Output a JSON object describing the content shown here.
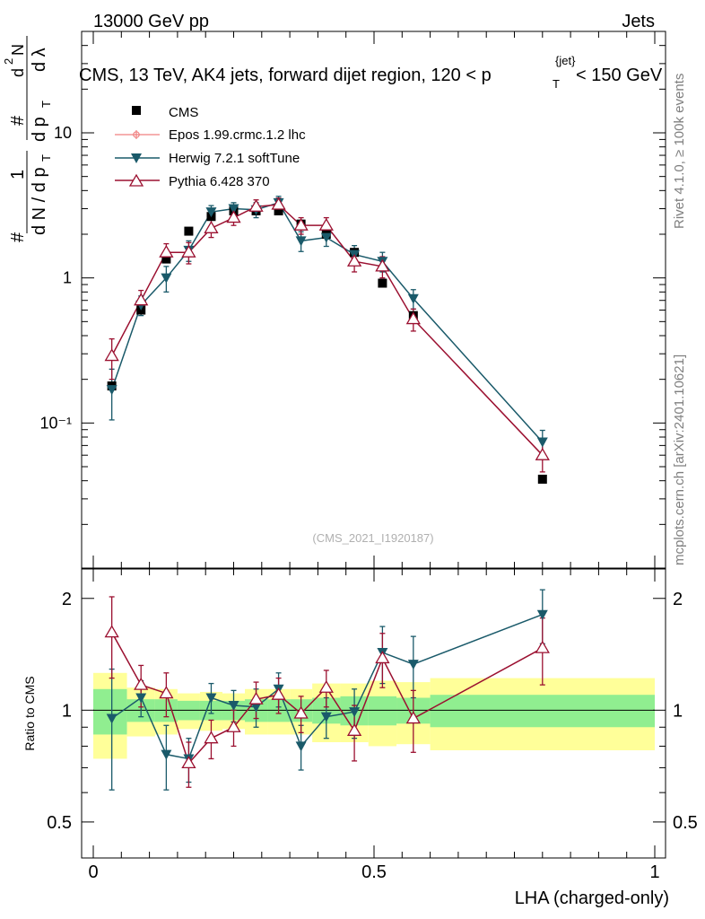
{
  "header": {
    "energy": "13000 GeV pp",
    "category": "Jets"
  },
  "side": {
    "rivet": "Rivet 4.1.0, ≥ 100k events",
    "site": "mcplots.cern.ch [arXiv:2401.10621]"
  },
  "watermark": "(CMS_2021_I1920187)",
  "chart_data": [
    {
      "type": "scatter",
      "panel": "main",
      "title": "CMS, 13 TeV, AK4 jets, forward dijet region, 120 < p_T^{jet} < 150 GeV",
      "xlabel": "LHA (charged-only)",
      "ylabel": "(1 / dN/dp_T) d²N / dp_T dλ",
      "yscale": "log",
      "xlim": [
        0,
        1
      ],
      "ylim": [
        0.01,
        50
      ],
      "yticks": [
        0.1,
        1,
        10
      ],
      "ytick_labels": [
        "10⁻¹",
        "1",
        "10"
      ],
      "x": [
        0.033,
        0.085,
        0.13,
        0.17,
        0.21,
        0.25,
        0.29,
        0.33,
        0.37,
        0.415,
        0.465,
        0.515,
        0.57,
        0.8
      ],
      "series": [
        {
          "name": "CMS",
          "color": "#000000",
          "marker": "square",
          "values": [
            0.18,
            0.6,
            1.35,
            2.1,
            2.65,
            2.9,
            2.9,
            2.9,
            2.35,
            2.0,
            1.5,
            0.92,
            0.55,
            0.041
          ]
        },
        {
          "name": "Epos 1.99.crmc.1.2 lhc",
          "color": "#f08080",
          "marker": "open-circle-cross",
          "values": []
        },
        {
          "name": "Herwig 7.2.1 softTune",
          "color": "#1a5a6a",
          "marker": "down-triangle",
          "values": [
            0.17,
            0.65,
            1.0,
            1.55,
            2.85,
            3.0,
            2.95,
            3.3,
            1.8,
            1.9,
            1.45,
            1.3,
            0.72,
            0.074
          ],
          "errors": [
            0.065,
            0.1,
            0.2,
            0.25,
            0.3,
            0.3,
            0.35,
            0.35,
            0.28,
            0.25,
            0.22,
            0.2,
            0.11,
            0.015
          ]
        },
        {
          "name": "Pythia 6.428 370",
          "color": "#9b1030",
          "marker": "open-triangle",
          "values": [
            0.29,
            0.7,
            1.5,
            1.5,
            2.2,
            2.6,
            3.1,
            3.2,
            2.3,
            2.3,
            1.3,
            1.2,
            0.52,
            0.06
          ],
          "errors": [
            0.09,
            0.12,
            0.22,
            0.25,
            0.3,
            0.3,
            0.35,
            0.35,
            0.3,
            0.3,
            0.2,
            0.2,
            0.09,
            0.014
          ]
        }
      ]
    },
    {
      "type": "scatter",
      "panel": "ratio",
      "xlabel": "LHA (charged-only)",
      "ylabel": "Ratio to CMS",
      "yscale": "log",
      "xlim": [
        0,
        1
      ],
      "ylim": [
        0.4,
        2.4
      ],
      "yticks": [
        0.5,
        1,
        2
      ],
      "ytick_labels": [
        "0.5",
        "1",
        "2"
      ],
      "xticks": [
        0,
        0.5,
        1
      ],
      "xtick_labels": [
        "0",
        "0.5",
        "1"
      ],
      "x": [
        0.033,
        0.085,
        0.13,
        0.17,
        0.21,
        0.25,
        0.29,
        0.33,
        0.37,
        0.415,
        0.465,
        0.515,
        0.57,
        0.8
      ],
      "bands": {
        "edges": [
          0,
          0.06,
          0.11,
          0.15,
          0.19,
          0.23,
          0.27,
          0.31,
          0.35,
          0.39,
          0.44,
          0.49,
          0.54,
          0.6,
          1.0
        ],
        "green": [
          0.14,
          0.07,
          0.07,
          0.06,
          0.06,
          0.06,
          0.07,
          0.07,
          0.07,
          0.08,
          0.09,
          0.09,
          0.08,
          0.1
        ],
        "yellow": [
          0.26,
          0.15,
          0.14,
          0.11,
          0.12,
          0.11,
          0.14,
          0.14,
          0.14,
          0.18,
          0.18,
          0.2,
          0.19,
          0.22
        ],
        "green_color": "#90ee90",
        "yellow_color": "#ffff99"
      },
      "series": [
        {
          "name": "Herwig 7.2.1 softTune",
          "color": "#1a5a6a",
          "marker": "down-triangle",
          "values": [
            0.95,
            1.08,
            0.76,
            0.74,
            1.08,
            1.03,
            1.02,
            1.14,
            0.8,
            0.96,
            0.99,
            1.43,
            1.33,
            1.81
          ],
          "errors": [
            0.34,
            0.12,
            0.15,
            0.1,
            0.1,
            0.1,
            0.12,
            0.12,
            0.11,
            0.12,
            0.15,
            0.25,
            0.25,
            0.3
          ]
        },
        {
          "name": "Pythia 6.428 370",
          "color": "#9b1030",
          "marker": "open-triangle",
          "values": [
            1.62,
            1.17,
            1.11,
            0.72,
            0.84,
            0.9,
            1.07,
            1.1,
            0.98,
            1.15,
            0.88,
            1.38,
            0.95,
            1.47
          ],
          "errors": [
            0.4,
            0.15,
            0.15,
            0.1,
            0.1,
            0.1,
            0.12,
            0.12,
            0.11,
            0.13,
            0.15,
            0.23,
            0.18,
            0.3
          ]
        }
      ]
    }
  ]
}
